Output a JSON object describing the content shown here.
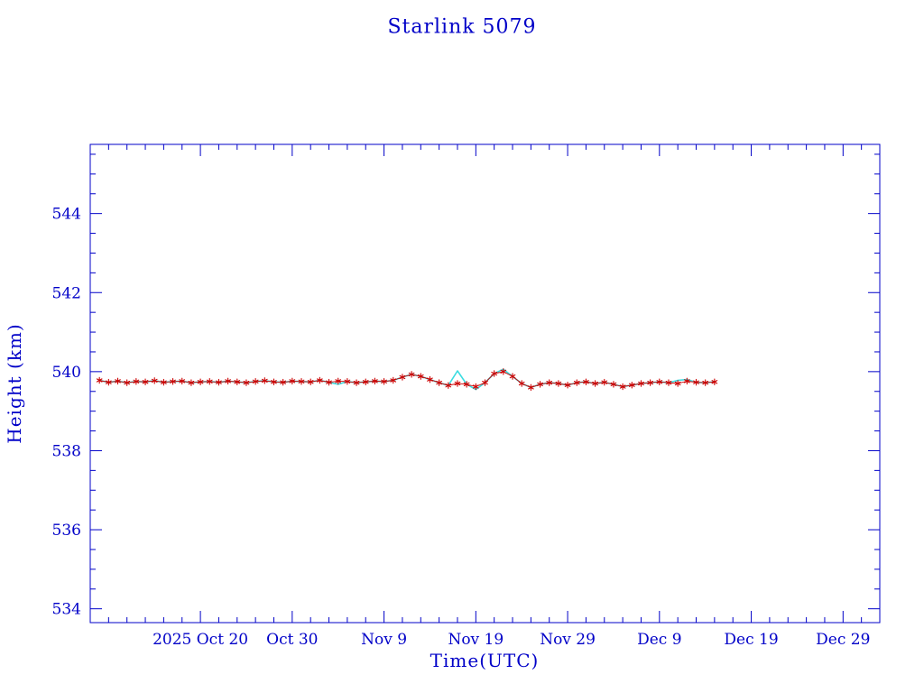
{
  "page": {
    "title": "Starlink 5079"
  },
  "chart_data": {
    "type": "line",
    "title": "Starlink 5079",
    "xlabel": "Time(UTC)",
    "ylabel": "Height (km)",
    "x_unit": "days since 2025-10-08",
    "x_domain_days": [
      0,
      86
    ],
    "y_domain": [
      533.65,
      545.75
    ],
    "grid": false,
    "legend": "none",
    "colors": {
      "axis": "#0000c8",
      "title": "#0000c8",
      "cyan_line": "#3adce0",
      "red_markers": "#cc0000"
    },
    "y_ticks": [
      {
        "value": 534,
        "label": "534"
      },
      {
        "value": 536,
        "label": "536"
      },
      {
        "value": 538,
        "label": "538"
      },
      {
        "value": 540,
        "label": "540"
      },
      {
        "value": 542,
        "label": "542"
      },
      {
        "value": 544,
        "label": "544"
      }
    ],
    "x_ticks": [
      {
        "day": 12,
        "label": "2025 Oct 20"
      },
      {
        "day": 22,
        "label": "Oct 30"
      },
      {
        "day": 32,
        "label": "Nov 9"
      },
      {
        "day": 42,
        "label": "Nov 19"
      },
      {
        "day": 52,
        "label": "Nov 29"
      },
      {
        "day": 62,
        "label": "Dec 9"
      },
      {
        "day": 72,
        "label": "Dec 19"
      },
      {
        "day": 82,
        "label": "Dec 29"
      }
    ],
    "x_minor_step_days": 2,
    "y_minor_step": 0.5,
    "series": [
      {
        "name": "cyan line series",
        "type": "line",
        "color": "#3adce0",
        "days": [
          1,
          2,
          3,
          4,
          5,
          6,
          7,
          8,
          9,
          10,
          11,
          12,
          13,
          14,
          15,
          16,
          17,
          18,
          19,
          20,
          21,
          22,
          23,
          24,
          25,
          26,
          27,
          28,
          29,
          30,
          31,
          32,
          33,
          34,
          35,
          36,
          37,
          38,
          39,
          40,
          41,
          42,
          43,
          44,
          45,
          46,
          47,
          48,
          49,
          50,
          51,
          52,
          53,
          54,
          55,
          56,
          57,
          58,
          59,
          60,
          61,
          62,
          63,
          64,
          65,
          66,
          67,
          68
        ],
        "values": [
          539.78,
          539.73,
          539.76,
          539.72,
          539.75,
          539.74,
          539.77,
          539.73,
          539.75,
          539.76,
          539.72,
          539.74,
          539.75,
          539.73,
          539.76,
          539.74,
          539.72,
          539.75,
          539.77,
          539.74,
          539.73,
          539.76,
          539.75,
          539.74,
          539.78,
          539.73,
          539.68,
          539.75,
          539.72,
          539.74,
          539.76,
          539.75,
          539.78,
          539.86,
          539.93,
          539.88,
          539.8,
          539.72,
          539.65,
          540.02,
          539.68,
          539.55,
          539.72,
          539.95,
          540.06,
          539.88,
          539.7,
          539.6,
          539.68,
          539.72,
          539.7,
          539.66,
          539.72,
          539.74,
          539.7,
          539.73,
          539.68,
          539.62,
          539.66,
          539.7,
          539.72,
          539.74,
          539.72,
          539.78,
          539.8,
          539.73,
          539.72,
          539.74
        ]
      },
      {
        "name": "red asterisk series",
        "type": "scatter",
        "marker": "asterisk",
        "color": "#cc0000",
        "days": [
          1,
          2,
          3,
          4,
          5,
          6,
          7,
          8,
          9,
          10,
          11,
          12,
          13,
          14,
          15,
          16,
          17,
          18,
          19,
          20,
          21,
          22,
          23,
          24,
          25,
          26,
          27,
          28,
          29,
          30,
          31,
          32,
          33,
          34,
          35,
          36,
          37,
          38,
          39,
          40,
          41,
          42,
          43,
          44,
          45,
          46,
          47,
          48,
          49,
          50,
          51,
          52,
          53,
          54,
          55,
          56,
          57,
          58,
          59,
          60,
          61,
          62,
          63,
          64,
          65,
          66,
          67,
          68
        ],
        "values": [
          539.78,
          539.73,
          539.76,
          539.72,
          539.75,
          539.74,
          539.77,
          539.73,
          539.75,
          539.76,
          539.72,
          539.74,
          539.75,
          539.73,
          539.76,
          539.74,
          539.72,
          539.75,
          539.77,
          539.74,
          539.73,
          539.76,
          539.75,
          539.74,
          539.78,
          539.73,
          539.76,
          539.75,
          539.72,
          539.74,
          539.76,
          539.75,
          539.78,
          539.86,
          539.93,
          539.88,
          539.8,
          539.72,
          539.65,
          539.7,
          539.68,
          539.62,
          539.72,
          539.95,
          540.0,
          539.88,
          539.7,
          539.6,
          539.68,
          539.72,
          539.7,
          539.66,
          539.72,
          539.74,
          539.7,
          539.73,
          539.68,
          539.62,
          539.66,
          539.7,
          539.72,
          539.74,
          539.72,
          539.7,
          539.76,
          539.73,
          539.72,
          539.74
        ]
      }
    ]
  }
}
